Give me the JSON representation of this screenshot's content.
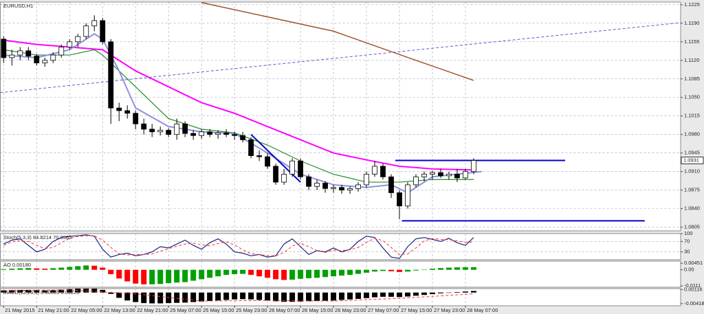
{
  "chart_data": [
    {
      "type": "candlestick",
      "title": "EURUSD,H1",
      "xlim": [
        -0.4,
        82.1
      ],
      "xticks": [
        {
          "value": 0,
          "label": "21 May 2015"
        },
        {
          "value": 4,
          "label": "21 May 21:00"
        },
        {
          "value": 8,
          "label": "22 May 05:00"
        },
        {
          "value": 12,
          "label": "22 May 13:00"
        },
        {
          "value": 16,
          "label": "22 May 21:00"
        },
        {
          "value": 20,
          "label": "25 May 07:00"
        },
        {
          "value": 24,
          "label": "25 May 15:00"
        },
        {
          "value": 28,
          "label": "25 May 23:00"
        },
        {
          "value": 32,
          "label": "26 May 07:00"
        },
        {
          "value": 36,
          "label": "26 May 15:00"
        },
        {
          "value": 40,
          "label": "26 May 23:00"
        },
        {
          "value": 44,
          "label": "27 May 07:00"
        },
        {
          "value": 48,
          "label": "27 May 15:00"
        },
        {
          "value": 52,
          "label": "27 May 23:00"
        },
        {
          "value": 56,
          "label": "28 May 07:00"
        }
      ],
      "ylim": [
        1.0798,
        1.123
      ],
      "yticks": [
        1.1225,
        {
          "value": 1.119,
          "label": "1.1190"
        },
        1.1155,
        {
          "value": 1.112,
          "label": "1.1120"
        },
        1.1085,
        {
          "value": 1.105,
          "label": "1.1050"
        },
        1.1015,
        {
          "value": 1.098,
          "label": "1.0980"
        },
        1.0945,
        {
          "value": 1.091,
          "label": "1.0910"
        },
        1.0875,
        {
          "value": 1.084,
          "label": "1.0840"
        },
        1.0805
      ],
      "grid": true,
      "price_label": 1.0931,
      "open": [
        1.116,
        1.1125,
        1.113,
        1.1138,
        1.1128,
        1.1115,
        1.112,
        1.113,
        1.1145,
        1.1155,
        1.1165,
        1.1185,
        1.1195,
        1.1155,
        1.103,
        1.1025,
        1.102,
        1.1,
        1.099,
        1.0985,
        1.0988,
        1.098,
        1.1,
        1.0982,
        1.0978,
        1.0985,
        1.098,
        1.0983,
        1.098,
        1.0978,
        1.097,
        1.094,
        1.0938,
        1.092,
        1.089,
        1.0905,
        1.093,
        1.09,
        1.0882,
        1.0888,
        1.0878,
        1.088,
        1.0875,
        1.0878,
        1.0885,
        1.0905,
        1.092,
        1.09,
        1.087,
        1.0845,
        1.0885,
        1.09,
        1.0905,
        1.0908,
        1.0902,
        1.0905,
        1.0898,
        1.091
      ],
      "high": [
        1.1165,
        1.114,
        1.1145,
        1.1145,
        1.1132,
        1.1125,
        1.1135,
        1.115,
        1.116,
        1.117,
        1.119,
        1.1205,
        1.12,
        1.116,
        1.104,
        1.1035,
        1.1025,
        1.101,
        1.1,
        1.0995,
        1.0992,
        1.101,
        1.1005,
        1.0988,
        1.099,
        1.099,
        1.0988,
        1.099,
        1.0985,
        1.0985,
        1.0975,
        1.095,
        1.0945,
        1.0925,
        1.0915,
        1.0935,
        1.0935,
        1.0905,
        1.0895,
        1.0892,
        1.0885,
        1.0885,
        1.0882,
        1.089,
        1.091,
        1.093,
        1.0925,
        1.0905,
        1.0875,
        1.089,
        1.0905,
        1.091,
        1.0912,
        1.0915,
        1.091,
        1.0915,
        1.0915,
        1.0935
      ],
      "low": [
        1.1115,
        1.111,
        1.112,
        1.112,
        1.111,
        1.1108,
        1.1115,
        1.1125,
        1.114,
        1.1145,
        1.116,
        1.1175,
        1.115,
        1.1,
        1.1005,
        1.101,
        1.099,
        1.098,
        1.0975,
        1.0978,
        1.0975,
        1.097,
        1.0975,
        1.097,
        1.0972,
        1.0975,
        1.0972,
        1.0975,
        1.097,
        1.0965,
        1.0935,
        1.093,
        1.0915,
        1.0885,
        1.0885,
        1.09,
        1.0895,
        1.0875,
        1.0875,
        1.087,
        1.087,
        1.0868,
        1.0868,
        1.0872,
        1.088,
        1.09,
        1.0895,
        1.086,
        1.082,
        1.084,
        1.088,
        1.0892,
        1.0895,
        1.0898,
        1.0895,
        1.089,
        1.0895,
        1.0905
      ],
      "close": [
        1.1125,
        1.113,
        1.1138,
        1.1128,
        1.1115,
        1.112,
        1.113,
        1.1145,
        1.1155,
        1.1165,
        1.1185,
        1.1195,
        1.1155,
        1.103,
        1.1025,
        1.102,
        1.1,
        1.099,
        1.0985,
        1.0988,
        1.098,
        1.1,
        1.0982,
        1.0978,
        1.0985,
        1.098,
        1.0983,
        1.098,
        1.0978,
        1.097,
        1.094,
        1.0938,
        1.092,
        1.089,
        1.0905,
        1.093,
        1.09,
        1.0882,
        1.0888,
        1.0878,
        1.088,
        1.0875,
        1.0878,
        1.0885,
        1.0905,
        1.092,
        1.09,
        1.087,
        1.0845,
        1.0885,
        1.09,
        1.0905,
        1.0908,
        1.0902,
        1.0905,
        1.0898,
        1.091,
        1.0931
      ],
      "series": [
        {
          "color": "#a0522d",
          "width": 1.5,
          "x": [
            24,
            40,
            50,
            57
          ],
          "values": [
            1.1229,
            1.1175,
            1.112,
            1.1082
          ]
        },
        {
          "color": "#ff00ff",
          "width": 2,
          "x": [
            0,
            4,
            8,
            12,
            16,
            20,
            24,
            28,
            32,
            36,
            40,
            44,
            48,
            52,
            57
          ],
          "values": [
            1.1158,
            1.115,
            1.1145,
            1.114,
            1.11,
            1.107,
            1.104,
            1.102,
            1.0995,
            1.097,
            1.0945,
            1.0932,
            1.092,
            1.0915,
            1.0913
          ]
        },
        {
          "color": "#228b22",
          "width": 1.2,
          "x": [
            0,
            4,
            8,
            11,
            12,
            16,
            20,
            24,
            28,
            32,
            36,
            40,
            44,
            48,
            52,
            57
          ],
          "values": [
            1.114,
            1.113,
            1.113,
            1.114,
            1.113,
            1.107,
            1.101,
            1.099,
            1.0983,
            1.096,
            1.093,
            1.0905,
            1.089,
            1.089,
            1.0895,
            1.0895
          ]
        },
        {
          "color": "#8f8fdf",
          "width": 2,
          "x": [
            0,
            4,
            8,
            11,
            12,
            14,
            16,
            20,
            24,
            28,
            32,
            36,
            40,
            44,
            47,
            49,
            52,
            55,
            58
          ],
          "values": [
            1.113,
            1.1125,
            1.114,
            1.117,
            1.116,
            1.11,
            1.103,
            1.0995,
            1.0985,
            1.0982,
            1.0945,
            1.0905,
            1.0885,
            1.088,
            1.0885,
            1.087,
            1.09,
            1.0905,
            1.091
          ]
        },
        {
          "color": "#5a5acd",
          "width": 1,
          "dash": true,
          "x": [
            -0.4,
            82.1
          ],
          "values": [
            1.1059,
            1.1191
          ]
        },
        {
          "color": "#0000cd",
          "width": 2,
          "x": [
            30,
            36
          ],
          "values": [
            1.098,
            1.089
          ]
        },
        {
          "color": "#0000cd",
          "width": 2,
          "x": [
            47.5,
            68.1
          ],
          "values": [
            1.0931,
            1.0931
          ]
        },
        {
          "color": "#0000cd",
          "width": 2,
          "x": [
            48.3,
            77.75
          ],
          "values": [
            1.0817,
            1.0817
          ]
        }
      ]
    },
    {
      "type": "line",
      "title": "Stoch(5,3,3) 84.8214 70.8585",
      "ylim": [
        0,
        100
      ],
      "yticks": [
        100,
        70,
        30
      ],
      "grid": true,
      "series": [
        {
          "color": "#1a237e",
          "width": 1.2,
          "values": [
            60,
            75,
            80,
            55,
            30,
            40,
            70,
            85,
            90,
            92,
            95,
            90,
            40,
            10,
            20,
            25,
            15,
            20,
            30,
            50,
            45,
            60,
            75,
            55,
            40,
            65,
            80,
            60,
            30,
            25,
            15,
            20,
            10,
            15,
            60,
            80,
            50,
            20,
            35,
            30,
            45,
            30,
            40,
            70,
            90,
            85,
            45,
            10,
            5,
            50,
            80,
            85,
            78,
            70,
            82,
            65,
            55,
            85
          ]
        },
        {
          "color": "#ff3030",
          "width": 1,
          "dash": true,
          "values": [
            55,
            68,
            72,
            70,
            55,
            42,
            47,
            65,
            82,
            89,
            92,
            92,
            75,
            47,
            23,
            18,
            20,
            20,
            22,
            33,
            42,
            52,
            60,
            63,
            57,
            53,
            62,
            68,
            57,
            38,
            23,
            20,
            15,
            15,
            28,
            52,
            63,
            50,
            35,
            28,
            37,
            35,
            38,
            47,
            67,
            82,
            73,
            47,
            20,
            22,
            45,
            72,
            81,
            78,
            77,
            72,
            67,
            68
          ]
        }
      ]
    },
    {
      "type": "bar",
      "title": "AO 0.00180",
      "ylim": [
        -0.012,
        0.006
      ],
      "yticks": [
        0.00451,
        {
          "value": 0,
          "label": "0.00"
        },
        -0.0111
      ],
      "grid": false,
      "up_color": "#00a000",
      "down_color": "#ff0000",
      "values": [
        0.0005,
        0.0008,
        0.001,
        0.0012,
        0.001,
        0.0008,
        0.0011,
        0.0015,
        0.002,
        0.0025,
        0.003,
        0.0028,
        0.0015,
        -0.003,
        -0.006,
        -0.008,
        -0.0095,
        -0.01,
        -0.01,
        -0.0098,
        -0.0092,
        -0.0088,
        -0.0085,
        -0.0075,
        -0.0065,
        -0.0055,
        -0.0045,
        -0.0035,
        -0.003,
        -0.0028,
        -0.0035,
        -0.0045,
        -0.0055,
        -0.0065,
        -0.007,
        -0.0068,
        -0.0062,
        -0.0058,
        -0.0055,
        -0.005,
        -0.0045,
        -0.004,
        -0.0035,
        -0.0028,
        -0.002,
        -0.0012,
        -0.0008,
        -0.001,
        -0.0015,
        -0.0012,
        -0.0005,
        0.0002,
        0.0008,
        0.0012,
        0.0015,
        0.0017,
        0.0018,
        0.0018
      ]
    },
    {
      "type": "bar",
      "title": "MACD(12,26,9) 0.00065 0.00225",
      "ylim": [
        -0.005,
        0.0015
      ],
      "yticks": [
        0.00116,
        -0.00418
      ],
      "grid": false,
      "color": "#000000",
      "values": [
        0.0008,
        0.0009,
        0.001,
        0.001,
        0.0009,
        0.0008,
        0.0009,
        0.0011,
        0.0013,
        0.0015,
        0.0017,
        0.0016,
        0.001,
        -0.0005,
        -0.002,
        -0.003,
        -0.0036,
        -0.004,
        -0.0041,
        -0.0041,
        -0.004,
        -0.0039,
        -0.0038,
        -0.0036,
        -0.0034,
        -0.0032,
        -0.003,
        -0.0028,
        -0.0026,
        -0.0025,
        -0.0026,
        -0.0028,
        -0.003,
        -0.0033,
        -0.0035,
        -0.0035,
        -0.0034,
        -0.0033,
        -0.0032,
        -0.0031,
        -0.003,
        -0.0028,
        -0.0026,
        -0.0024,
        -0.0021,
        -0.0018,
        -0.0016,
        -0.0016,
        -0.0017,
        -0.0015,
        -0.0012,
        -0.0009,
        -0.0006,
        -0.0003,
        0.0,
        0.0002,
        0.0004,
        0.0006
      ],
      "series": [
        {
          "color": "#ff3030",
          "width": 1,
          "dash": true,
          "x": [
            0,
            8,
            16,
            24,
            32,
            40,
            48,
            57
          ],
          "values": [
            0.0008,
            0.001,
            -0.0005,
            -0.0032,
            -0.003,
            -0.0032,
            -0.0022,
            -0.0005
          ]
        }
      ]
    }
  ]
}
